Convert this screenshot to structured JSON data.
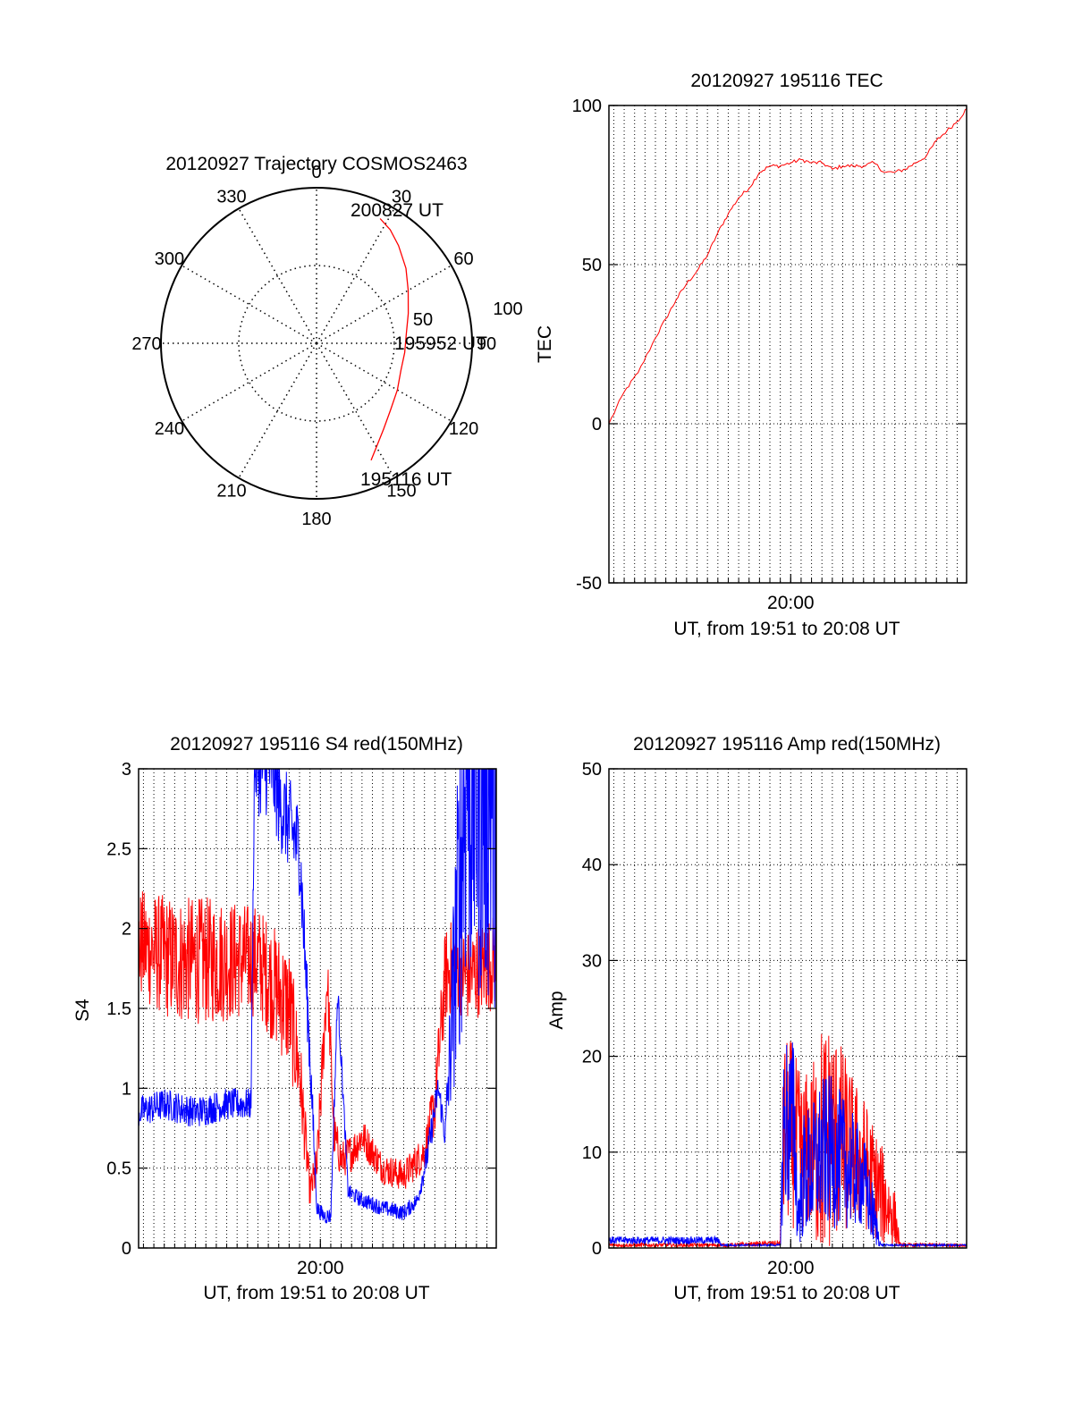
{
  "colors": {
    "red": "#ff0000",
    "blue": "#0000ff",
    "frame": "#000000",
    "grid": "#000000"
  },
  "chart_data": [
    {
      "type": "polar",
      "title": "20120927 Trajectory COSMOS2463",
      "angle_labels": [
        "0",
        "30",
        "60",
        "90",
        "120",
        "150",
        "180",
        "210",
        "240",
        "270",
        "300",
        "330"
      ],
      "radial_labels": [
        "50",
        "100"
      ],
      "rlim": [
        0,
        100
      ],
      "grid": true,
      "series": [
        {
          "color": "red",
          "points": [
            {
              "az": 155,
              "r": 83
            },
            {
              "az": 150,
              "r": 77
            },
            {
              "az": 142,
              "r": 70
            },
            {
              "az": 132,
              "r": 64
            },
            {
              "az": 120,
              "r": 60
            },
            {
              "az": 108,
              "r": 57
            },
            {
              "az": 96,
              "r": 57
            },
            {
              "az": 84,
              "r": 58
            },
            {
              "az": 72,
              "r": 62
            },
            {
              "az": 60,
              "r": 68
            },
            {
              "az": 50,
              "r": 75
            },
            {
              "az": 40,
              "r": 82
            },
            {
              "az": 33,
              "r": 87
            },
            {
              "az": 27,
              "r": 90
            }
          ]
        }
      ],
      "annotations": [
        {
          "text": "195116 UT",
          "az": 150,
          "r": 82
        },
        {
          "text": "195952 UT",
          "az": 89,
          "r": 61
        },
        {
          "text": "200827 UT",
          "az": 27,
          "r": 90
        }
      ]
    },
    {
      "type": "line",
      "title": "20120927 195116 TEC",
      "xlabel": "UT, from 19:51 to 20:08 UT",
      "ylabel": "TEC",
      "xlim": [
        "19:51:16",
        "20:08:27"
      ],
      "ylim": [
        -50,
        100
      ],
      "yticks": [
        "-50",
        "0",
        "50",
        "100"
      ],
      "xticks": [
        {
          "time": "20:00",
          "label": "20:00"
        }
      ],
      "grid": true,
      "series": [
        {
          "color": "red",
          "x": [
            "19:51:16",
            "19:52:00",
            "19:52:40",
            "19:53:30",
            "19:54:00",
            "19:54:30",
            "19:55:00",
            "19:55:30",
            "19:56:00",
            "19:56:30",
            "19:57:00",
            "19:57:30",
            "19:58:00",
            "19:58:30",
            "19:59:00",
            "19:59:30",
            "20:00:00",
            "20:00:30",
            "20:01:00",
            "20:01:30",
            "20:02:00",
            "20:02:30",
            "20:03:00",
            "20:03:30",
            "20:04:00",
            "20:04:30",
            "20:05:00",
            "20:05:30",
            "20:06:00",
            "20:06:30",
            "20:07:00",
            "20:07:30",
            "20:08:00",
            "20:08:27"
          ],
          "y": [
            0,
            10,
            16,
            27,
            33,
            39,
            44,
            48,
            53,
            60,
            66,
            71,
            74,
            79,
            81,
            81,
            82,
            83,
            82,
            82,
            80,
            81,
            81,
            81,
            82,
            79,
            79,
            80,
            82,
            84,
            89,
            92,
            95,
            99
          ]
        }
      ]
    },
    {
      "type": "line",
      "title": "20120927 195116 S4 red(150MHz)",
      "xlabel": "UT, from 19:51 to 20:08 UT",
      "ylabel": "S4",
      "xlim": [
        "19:51:16",
        "20:08:27"
      ],
      "ylim": [
        0,
        3
      ],
      "yticks": [
        "0",
        "0.5",
        "1",
        "1.5",
        "2",
        "2.5",
        "3"
      ],
      "xticks": [
        {
          "time": "20:00",
          "label": "20:00"
        }
      ],
      "grid": true,
      "series": [
        {
          "color": "red",
          "x": [
            "19:51:16",
            "19:53:00",
            "19:55:00",
            "19:57:00",
            "19:58:30",
            "19:59:00",
            "19:59:30",
            "19:59:50",
            "20:00:00",
            "20:00:20",
            "20:00:40",
            "20:01:00",
            "20:01:30",
            "20:02:00",
            "20:03:00",
            "20:04:00",
            "20:05:00",
            "20:05:30",
            "20:06:00",
            "20:06:30",
            "20:07:00",
            "20:08:27"
          ],
          "y": [
            1.9,
            1.8,
            1.8,
            1.8,
            1.5,
            1.1,
            0.35,
            0.5,
            0.9,
            1.7,
            0.7,
            0.55,
            0.6,
            0.7,
            0.5,
            0.45,
            0.6,
            0.9,
            1.7,
            1.8,
            1.7,
            1.8
          ],
          "noise": [
            0.35,
            0.4,
            0.4,
            0.35,
            0.4,
            0.3,
            0.1,
            0.15,
            0.2,
            0.2,
            0.15,
            0.12,
            0.12,
            0.12,
            0.1,
            0.1,
            0.12,
            0.2,
            0.3,
            0.3,
            0.3,
            0.3
          ]
        },
        {
          "color": "blue",
          "x": [
            "19:51:16",
            "19:52:30",
            "19:54:00",
            "19:55:30",
            "19:56:40",
            "19:56:50",
            "19:57:00",
            "19:57:40",
            "19:58:00",
            "19:59:00",
            "19:59:30",
            "19:59:50",
            "20:00:10",
            "20:00:30",
            "20:00:50",
            "20:01:20",
            "20:02:00",
            "20:03:00",
            "20:04:00",
            "20:04:40",
            "20:05:10",
            "20:05:40",
            "20:06:00",
            "20:07:00",
            "20:08:27"
          ],
          "y": [
            0.85,
            0.9,
            0.85,
            0.9,
            0.9,
            3,
            3,
            3,
            2.8,
            2.5,
            1.2,
            0.25,
            0.2,
            0.2,
            1.6,
            0.35,
            0.3,
            0.25,
            0.22,
            0.3,
            0.6,
            1.0,
            0.7,
            3,
            3
          ],
          "noise": [
            0.1,
            0.1,
            0.1,
            0.1,
            0.1,
            0.2,
            0.3,
            0.3,
            0.3,
            0.3,
            0.2,
            0.05,
            0.05,
            0.05,
            0.1,
            0.05,
            0.05,
            0.05,
            0.05,
            0.05,
            0.1,
            0.1,
            0.1,
            1.5,
            1.5
          ]
        }
      ]
    },
    {
      "type": "line",
      "title": "20120927 195116 Amp red(150MHz)",
      "xlabel": "UT, from 19:51 to 20:08 UT",
      "ylabel": "Amp",
      "xlim": [
        "19:51:16",
        "20:08:27"
      ],
      "ylim": [
        0,
        50
      ],
      "yticks": [
        "0",
        "10",
        "20",
        "30",
        "40",
        "50"
      ],
      "xticks": [
        {
          "time": "20:00",
          "label": "20:00"
        }
      ],
      "grid": true,
      "series": [
        {
          "color": "red",
          "x": [
            "19:51:16",
            "19:57:00",
            "19:59:30",
            "19:59:40",
            "20:00:00",
            "20:00:30",
            "20:01:00",
            "20:01:30",
            "20:02:00",
            "20:02:30",
            "20:03:00",
            "20:03:30",
            "20:04:00",
            "20:04:30",
            "20:05:00",
            "20:05:15",
            "20:08:27"
          ],
          "y": [
            0.3,
            0.3,
            0.5,
            12,
            12,
            10,
            10,
            11,
            12,
            11,
            10,
            9,
            7,
            5,
            3,
            0.3,
            0.3
          ],
          "noise": [
            0.2,
            0.2,
            0.3,
            10,
            10,
            8,
            9,
            13,
            12,
            10,
            8,
            7,
            6,
            5,
            3,
            0.2,
            0.2
          ]
        },
        {
          "color": "blue",
          "x": [
            "19:51:16",
            "19:56:30",
            "19:56:40",
            "19:59:30",
            "19:59:40",
            "20:00:10",
            "20:00:20",
            "20:00:40",
            "20:01:00",
            "20:01:30",
            "20:02:00",
            "20:02:30",
            "20:03:00",
            "20:03:30",
            "20:04:00",
            "20:04:20",
            "20:08:27"
          ],
          "y": [
            0.8,
            0.8,
            0.3,
            0.3,
            13,
            13,
            3,
            8,
            8,
            10,
            10,
            9,
            8,
            7,
            3,
            0.3,
            0.3
          ],
          "noise": [
            0.4,
            0.4,
            0.1,
            0.1,
            10,
            9,
            3,
            7,
            7,
            8,
            8,
            7,
            6,
            5,
            3,
            0.1,
            0.1
          ]
        }
      ]
    }
  ]
}
